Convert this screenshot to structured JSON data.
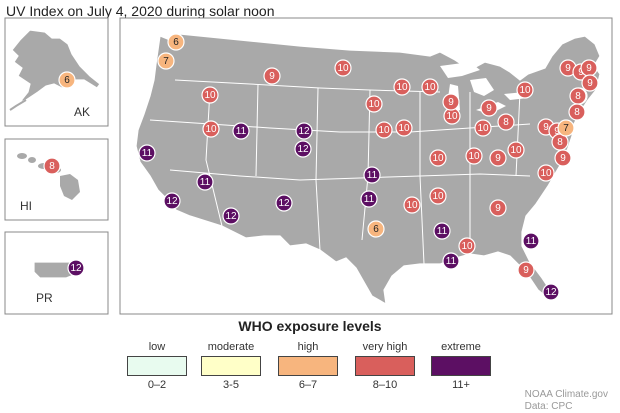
{
  "title": "UV Index on July 4, 2020 during solar noon",
  "insets": [
    {
      "id": "alaska",
      "label": "AK",
      "value": 6
    },
    {
      "id": "hawaii",
      "label": "HI",
      "value": 8
    },
    {
      "id": "puerto-rico",
      "label": "PR",
      "value": 12
    }
  ],
  "legend": {
    "title": "WHO exposure levels",
    "items": [
      {
        "label": "low",
        "range": "0–2",
        "color": "#e8fbef"
      },
      {
        "label": "moderate",
        "range": "3-5",
        "color": "#ffffc8"
      },
      {
        "label": "high",
        "range": "6–7",
        "color": "#f7b57e"
      },
      {
        "label": "very high",
        "range": "8–10",
        "color": "#d95f5c"
      },
      {
        "label": "extreme",
        "range": "11+",
        "color": "#5c0f63"
      }
    ]
  },
  "markers": [
    {
      "value": 6
    },
    {
      "value": 7
    },
    {
      "value": 10
    },
    {
      "value": 9
    },
    {
      "value": 10
    },
    {
      "value": 10
    },
    {
      "value": 11
    },
    {
      "value": 12
    },
    {
      "value": 12
    },
    {
      "value": 11
    },
    {
      "value": 11
    },
    {
      "value": 12
    },
    {
      "value": 12
    },
    {
      "value": 12
    },
    {
      "value": 10
    },
    {
      "value": 10
    },
    {
      "value": 10
    },
    {
      "value": 10
    },
    {
      "value": 10
    },
    {
      "value": 11
    },
    {
      "value": 11
    },
    {
      "value": 6
    },
    {
      "value": 10
    },
    {
      "value": 10
    },
    {
      "value": 10
    },
    {
      "value": 11
    },
    {
      "value": 11
    },
    {
      "value": 10
    },
    {
      "value": 9
    },
    {
      "value": 9
    },
    {
      "value": 10
    },
    {
      "value": 9
    },
    {
      "value": 8
    },
    {
      "value": 9
    },
    {
      "value": 10
    },
    {
      "value": 10
    },
    {
      "value": 10
    },
    {
      "value": 10
    },
    {
      "value": 9
    },
    {
      "value": 9
    },
    {
      "value": 11
    },
    {
      "value": 9
    },
    {
      "value": 12
    },
    {
      "value": 9
    },
    {
      "value": 9
    },
    {
      "value": 9
    },
    {
      "value": 9
    },
    {
      "value": 8
    },
    {
      "value": 8
    },
    {
      "value": 9
    },
    {
      "value": 8
    },
    {
      "value": 7
    },
    {
      "value": 9
    },
    {
      "value": 10
    }
  ],
  "credit": {
    "line1": "NOAA Climate.gov",
    "line2": "Data: CPC"
  }
}
